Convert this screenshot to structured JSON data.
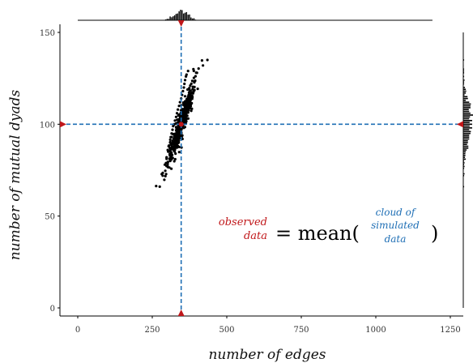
{
  "chart_data": {
    "type": "scatter",
    "xlabel": "number of edges",
    "ylabel": "number of mutual dyads",
    "xlim": [
      -50,
      1250
    ],
    "ylim": [
      -5,
      155
    ],
    "x_ticks": [
      0,
      250,
      500,
      750,
      1000,
      1250
    ],
    "y_ticks": [
      0,
      50,
      100,
      150
    ],
    "observed": {
      "x": 347,
      "y": 100
    },
    "cloud": {
      "description_points": [
        [
          275,
          66
        ],
        [
          285,
          72
        ],
        [
          292,
          78
        ],
        [
          298,
          82
        ],
        [
          302,
          86
        ],
        [
          305,
          88
        ],
        [
          310,
          90
        ],
        [
          312,
          93
        ],
        [
          315,
          95
        ],
        [
          318,
          97
        ],
        [
          320,
          99
        ],
        [
          323,
          100
        ],
        [
          326,
          102
        ],
        [
          330,
          104
        ],
        [
          333,
          106
        ],
        [
          336,
          108
        ],
        [
          340,
          110
        ],
        [
          343,
          112
        ],
        [
          347,
          114
        ],
        [
          350,
          116
        ],
        [
          353,
          118
        ],
        [
          356,
          120
        ],
        [
          358,
          122
        ],
        [
          360,
          124
        ],
        [
          363,
          126
        ],
        [
          365,
          127
        ],
        [
          370,
          129
        ],
        [
          388,
          130
        ],
        [
          400,
          128
        ],
        [
          420,
          132
        ],
        [
          435,
          135
        ]
      ],
      "x_center": 347,
      "y_center": 100,
      "n": 500
    },
    "annotation": {
      "observed_line1": "observed",
      "observed_line2": "data",
      "equals": "= mean(",
      "cloud_line1": "cloud of",
      "cloud_line2": "simulated",
      "cloud_line3": "data",
      "close": ")"
    },
    "colors": {
      "observed": "#c0171a",
      "guide": "#1f6fb5",
      "points": "#000000"
    }
  }
}
